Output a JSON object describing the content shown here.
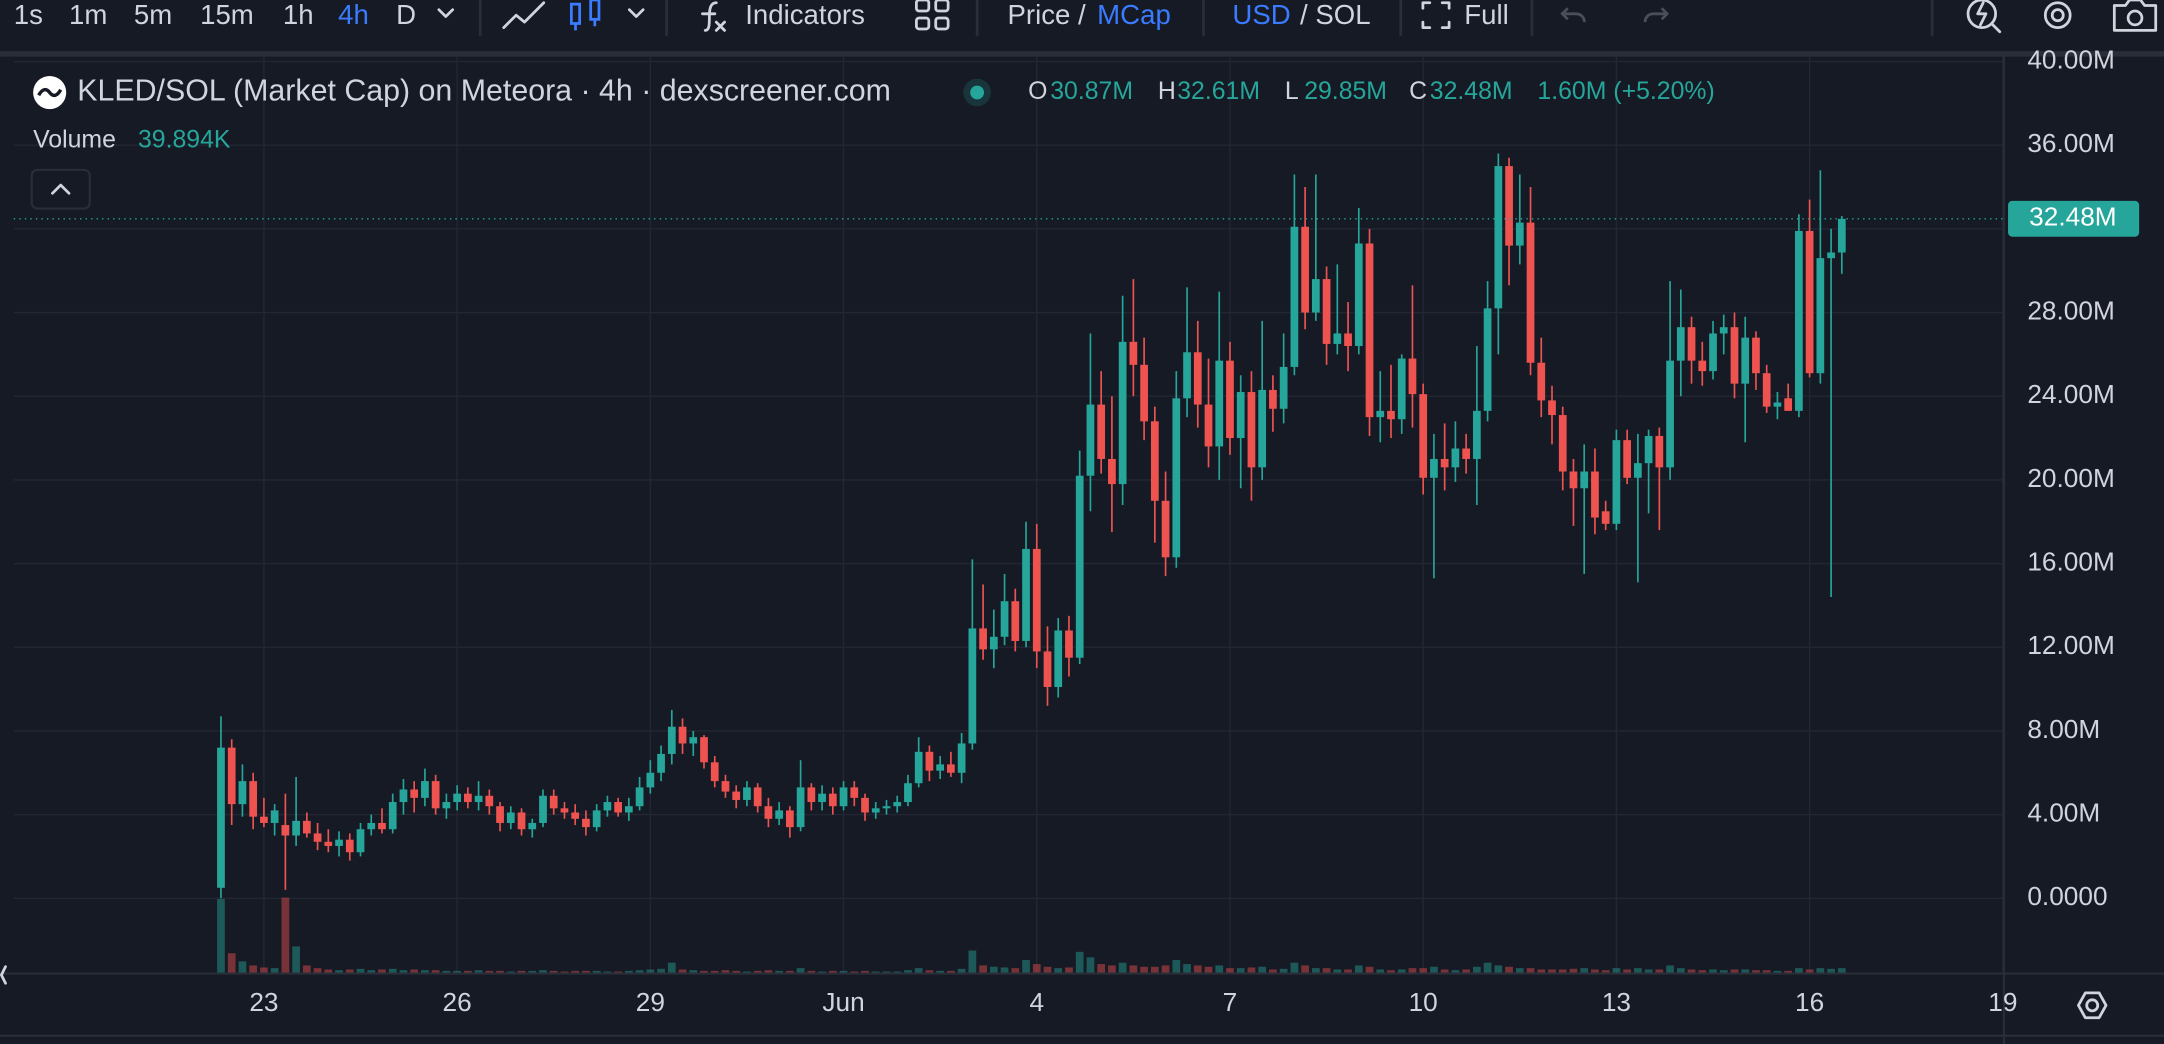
{
  "toolbar": {
    "intervals": [
      "1s",
      "1m",
      "5m",
      "15m",
      "1h",
      "4h",
      "D"
    ],
    "active_interval": "4h",
    "indicators": "Indicators",
    "price": "Price /",
    "mcap": "MCap",
    "usd": "USD",
    "sol": "/ SOL",
    "full": "Full"
  },
  "chart_data": {
    "type": "candlestick",
    "title": "KLED/SOL (Market Cap) on Meteora · 4h · dexscreener.com",
    "ohlc_legend": [
      {
        "key": "O",
        "text": "30.87M"
      },
      {
        "key": "H",
        "text": "32.61M"
      },
      {
        "key": "L",
        "text": "29.85M"
      },
      {
        "key": "C",
        "text": "32.48M"
      }
    ],
    "change": "1.60M (+5.20%)",
    "volume_label": "Volume",
    "volume_text": "39.894K",
    "up_color": "#26a69a",
    "down_color": "#ef5350",
    "grid": true,
    "last_price": {
      "value": 32.48,
      "label": "32.48M"
    },
    "ylim": [
      -3.6,
      40.3
    ],
    "yticks": [
      {
        "value": 0,
        "label": "0.0000"
      },
      {
        "value": 4,
        "label": "4.00M"
      },
      {
        "value": 8,
        "label": "8.00M"
      },
      {
        "value": 12,
        "label": "12.00M"
      },
      {
        "value": 16,
        "label": "16.00M"
      },
      {
        "value": 20,
        "label": "20.00M"
      },
      {
        "value": 24,
        "label": "24.00M"
      },
      {
        "value": 28,
        "label": "28.00M"
      },
      {
        "value": 32,
        "label": "32.00M"
      },
      {
        "value": 36,
        "label": "36.00M"
      },
      {
        "value": 40,
        "label": "40.00M"
      }
    ],
    "xlim": [
      -19.3,
      166.1
    ],
    "xticks": [
      {
        "value": 4,
        "label": "23"
      },
      {
        "value": 22,
        "label": "26"
      },
      {
        "value": 40,
        "label": "29"
      },
      {
        "value": 58,
        "label": "Jun"
      },
      {
        "value": 76,
        "label": "4"
      },
      {
        "value": 94,
        "label": "7"
      },
      {
        "value": 112,
        "label": "10"
      },
      {
        "value": 130,
        "label": "13"
      },
      {
        "value": 148,
        "label": "16"
      },
      {
        "value": 166,
        "label": "19"
      }
    ],
    "ohlc": [
      [
        0.5,
        8.7,
        0.0,
        7.2
      ],
      [
        7.2,
        7.6,
        3.5,
        4.5
      ],
      [
        4.5,
        6.4,
        3.9,
        5.6
      ],
      [
        5.6,
        6.0,
        3.3,
        3.9
      ],
      [
        3.9,
        4.8,
        3.4,
        3.6
      ],
      [
        3.6,
        4.5,
        3.0,
        4.2
      ],
      [
        3.5,
        5.0,
        0.4,
        3.0
      ],
      [
        3.0,
        5.8,
        2.5,
        3.7
      ],
      [
        3.7,
        4.1,
        2.9,
        3.1
      ],
      [
        3.1,
        3.6,
        2.3,
        2.7
      ],
      [
        2.7,
        3.3,
        2.2,
        2.5
      ],
      [
        2.5,
        3.2,
        2.0,
        2.8
      ],
      [
        2.8,
        3.1,
        1.8,
        2.2
      ],
      [
        2.2,
        3.6,
        2.0,
        3.3
      ],
      [
        3.3,
        4.0,
        3.0,
        3.6
      ],
      [
        3.6,
        4.3,
        3.1,
        3.3
      ],
      [
        3.3,
        5.0,
        3.1,
        4.6
      ],
      [
        4.6,
        5.7,
        4.0,
        5.2
      ],
      [
        5.2,
        5.6,
        4.1,
        4.8
      ],
      [
        4.8,
        6.2,
        4.4,
        5.6
      ],
      [
        5.6,
        5.9,
        4.0,
        4.3
      ],
      [
        4.3,
        5.0,
        3.8,
        4.6
      ],
      [
        4.6,
        5.4,
        4.2,
        5.0
      ],
      [
        5.0,
        5.3,
        4.3,
        4.6
      ],
      [
        4.6,
        5.6,
        4.2,
        4.9
      ],
      [
        4.9,
        5.2,
        4.0,
        4.4
      ],
      [
        4.4,
        4.6,
        3.2,
        3.6
      ],
      [
        3.6,
        4.4,
        3.3,
        4.1
      ],
      [
        4.1,
        4.3,
        3.0,
        3.3
      ],
      [
        3.3,
        3.8,
        2.9,
        3.6
      ],
      [
        3.6,
        5.2,
        3.4,
        4.9
      ],
      [
        4.9,
        5.2,
        4.0,
        4.3
      ],
      [
        4.3,
        4.6,
        3.8,
        4.1
      ],
      [
        4.1,
        4.5,
        3.5,
        3.8
      ],
      [
        3.8,
        4.2,
        3.0,
        3.4
      ],
      [
        3.4,
        4.5,
        3.2,
        4.2
      ],
      [
        4.2,
        4.9,
        3.9,
        4.6
      ],
      [
        4.6,
        4.8,
        3.9,
        4.1
      ],
      [
        4.1,
        4.8,
        3.7,
        4.4
      ],
      [
        4.4,
        5.8,
        4.2,
        5.3
      ],
      [
        5.3,
        6.6,
        5.0,
        6.0
      ],
      [
        6.0,
        7.3,
        5.6,
        6.9
      ],
      [
        6.9,
        9.0,
        6.4,
        8.2
      ],
      [
        8.2,
        8.6,
        6.9,
        7.4
      ],
      [
        7.4,
        8.0,
        6.8,
        7.7
      ],
      [
        7.7,
        7.8,
        6.2,
        6.5
      ],
      [
        6.5,
        6.8,
        5.3,
        5.6
      ],
      [
        5.6,
        5.9,
        4.8,
        5.1
      ],
      [
        5.1,
        5.4,
        4.3,
        4.7
      ],
      [
        4.7,
        5.6,
        4.4,
        5.3
      ],
      [
        5.3,
        5.5,
        4.1,
        4.4
      ],
      [
        4.4,
        4.8,
        3.4,
        3.8
      ],
      [
        3.8,
        4.6,
        3.5,
        4.2
      ],
      [
        4.2,
        4.4,
        2.9,
        3.4
      ],
      [
        3.4,
        6.6,
        3.2,
        5.3
      ],
      [
        5.3,
        5.5,
        4.2,
        4.6
      ],
      [
        4.6,
        5.4,
        4.2,
        5.0
      ],
      [
        5.0,
        5.3,
        4.0,
        4.4
      ],
      [
        4.4,
        5.6,
        4.2,
        5.3
      ],
      [
        5.3,
        5.6,
        4.4,
        4.8
      ],
      [
        4.8,
        5.0,
        3.7,
        4.1
      ],
      [
        4.1,
        4.6,
        3.8,
        4.3
      ],
      [
        4.3,
        4.7,
        4.0,
        4.4
      ],
      [
        4.4,
        4.9,
        4.1,
        4.6
      ],
      [
        4.6,
        5.9,
        4.4,
        5.5
      ],
      [
        5.5,
        7.7,
        5.3,
        7.0
      ],
      [
        7.0,
        7.3,
        5.6,
        6.1
      ],
      [
        6.1,
        6.8,
        5.7,
        6.4
      ],
      [
        6.4,
        7.0,
        5.8,
        6.0
      ],
      [
        6.0,
        7.9,
        5.5,
        7.4
      ],
      [
        7.4,
        16.2,
        7.1,
        12.9
      ],
      [
        12.9,
        15.0,
        11.4,
        11.9
      ],
      [
        11.9,
        13.8,
        11.0,
        12.5
      ],
      [
        12.5,
        15.5,
        12.1,
        14.2
      ],
      [
        14.2,
        14.8,
        11.8,
        12.3
      ],
      [
        12.3,
        18.0,
        12.0,
        16.7
      ],
      [
        16.7,
        17.9,
        11.0,
        11.8
      ],
      [
        11.8,
        13.0,
        9.2,
        10.1
      ],
      [
        10.1,
        13.4,
        9.6,
        12.8
      ],
      [
        12.8,
        13.5,
        10.6,
        11.5
      ],
      [
        11.5,
        21.4,
        11.2,
        20.2
      ],
      [
        20.2,
        27.0,
        18.5,
        23.6
      ],
      [
        23.6,
        25.2,
        20.3,
        21.0
      ],
      [
        21.0,
        24.0,
        17.5,
        19.8
      ],
      [
        19.8,
        28.8,
        18.8,
        26.6
      ],
      [
        26.6,
        29.6,
        24.0,
        25.5
      ],
      [
        25.5,
        26.8,
        21.9,
        22.8
      ],
      [
        22.8,
        23.5,
        17.0,
        19.0
      ],
      [
        19.0,
        20.4,
        15.4,
        16.3
      ],
      [
        16.3,
        25.2,
        15.8,
        23.9
      ],
      [
        23.9,
        29.2,
        23.0,
        26.1
      ],
      [
        26.1,
        27.6,
        22.5,
        23.6
      ],
      [
        23.6,
        25.8,
        20.6,
        21.6
      ],
      [
        21.6,
        29.0,
        20.0,
        25.7
      ],
      [
        25.7,
        26.6,
        21.2,
        22.0
      ],
      [
        22.0,
        25.0,
        19.6,
        24.2
      ],
      [
        24.2,
        25.2,
        19.0,
        20.6
      ],
      [
        20.6,
        27.6,
        20.0,
        24.3
      ],
      [
        24.3,
        25.0,
        22.3,
        23.4
      ],
      [
        23.4,
        27.0,
        22.7,
        25.4
      ],
      [
        25.4,
        34.6,
        25.0,
        32.1
      ],
      [
        32.1,
        34.0,
        27.2,
        28.0
      ],
      [
        28.0,
        34.6,
        27.6,
        29.6
      ],
      [
        29.6,
        30.2,
        25.5,
        26.5
      ],
      [
        26.5,
        30.3,
        26.0,
        27.0
      ],
      [
        27.0,
        28.5,
        25.2,
        26.4
      ],
      [
        26.4,
        33.0,
        26.0,
        31.3
      ],
      [
        31.3,
        32.0,
        22.1,
        23.0
      ],
      [
        23.0,
        25.2,
        21.8,
        23.3
      ],
      [
        23.3,
        25.5,
        22.0,
        22.9
      ],
      [
        22.9,
        26.0,
        22.2,
        25.8
      ],
      [
        25.8,
        29.3,
        22.5,
        24.1
      ],
      [
        24.1,
        24.6,
        19.3,
        20.1
      ],
      [
        20.1,
        22.2,
        15.3,
        21.0
      ],
      [
        21.0,
        22.7,
        19.5,
        20.6
      ],
      [
        20.6,
        22.8,
        19.9,
        21.5
      ],
      [
        21.5,
        22.2,
        20.3,
        21.0
      ],
      [
        21.0,
        26.4,
        18.8,
        23.3
      ],
      [
        23.3,
        29.5,
        22.8,
        28.2
      ],
      [
        28.2,
        35.6,
        26.0,
        35.0
      ],
      [
        35.0,
        35.4,
        29.3,
        31.2
      ],
      [
        31.2,
        34.6,
        30.3,
        32.3
      ],
      [
        32.3,
        34.0,
        25.0,
        25.6
      ],
      [
        25.6,
        26.8,
        23.0,
        23.8
      ],
      [
        23.8,
        24.5,
        21.7,
        23.1
      ],
      [
        23.1,
        23.5,
        19.5,
        20.4
      ],
      [
        20.4,
        21.0,
        17.8,
        19.6
      ],
      [
        19.6,
        21.7,
        15.5,
        20.4
      ],
      [
        20.4,
        21.5,
        17.4,
        18.2
      ],
      [
        18.5,
        19.0,
        17.6,
        17.9
      ],
      [
        17.9,
        22.4,
        17.6,
        21.9
      ],
      [
        21.9,
        22.4,
        19.8,
        20.1
      ],
      [
        20.1,
        22.2,
        15.1,
        20.8
      ],
      [
        20.8,
        22.4,
        18.4,
        22.1
      ],
      [
        22.1,
        22.5,
        17.6,
        20.6
      ],
      [
        20.6,
        29.5,
        20.0,
        25.7
      ],
      [
        25.7,
        29.1,
        24.0,
        27.3
      ],
      [
        27.3,
        27.8,
        24.6,
        25.7
      ],
      [
        25.7,
        26.6,
        24.5,
        25.2
      ],
      [
        25.2,
        27.6,
        24.8,
        27.0
      ],
      [
        27.0,
        27.9,
        26.0,
        27.3
      ],
      [
        27.3,
        28.0,
        23.9,
        24.6
      ],
      [
        24.6,
        27.8,
        21.8,
        26.8
      ],
      [
        26.8,
        27.1,
        24.3,
        25.1
      ],
      [
        25.1,
        25.5,
        23.2,
        23.5
      ],
      [
        23.5,
        24.2,
        22.9,
        23.7
      ],
      [
        23.9,
        24.6,
        23.3,
        23.3
      ],
      [
        23.3,
        32.7,
        23.0,
        31.9
      ],
      [
        31.9,
        33.4,
        24.9,
        25.1
      ],
      [
        25.1,
        34.8,
        24.6,
        30.6
      ],
      [
        30.6,
        32.0,
        14.4,
        30.87
      ],
      [
        30.87,
        32.61,
        29.85,
        32.48
      ]
    ],
    "volume": [
      550,
      150,
      90,
      60,
      45,
      40,
      560,
      200,
      60,
      40,
      30,
      25,
      30,
      35,
      25,
      30,
      35,
      25,
      30,
      25,
      25,
      20,
      20,
      20,
      25,
      20,
      20,
      15,
      20,
      20,
      25,
      20,
      15,
      20,
      20,
      20,
      15,
      15,
      20,
      25,
      30,
      35,
      80,
      30,
      25,
      20,
      20,
      25,
      20,
      15,
      20,
      25,
      20,
      20,
      40,
      20,
      15,
      20,
      20,
      15,
      20,
      15,
      15,
      15,
      25,
      40,
      25,
      20,
      20,
      35,
      170,
      60,
      50,
      45,
      40,
      100,
      70,
      50,
      40,
      45,
      160,
      120,
      70,
      60,
      80,
      60,
      50,
      50,
      60,
      100,
      70,
      60,
      50,
      60,
      40,
      40,
      45,
      50,
      30,
      35,
      80,
      60,
      40,
      40,
      30,
      30,
      60,
      50,
      30,
      25,
      30,
      40,
      40,
      50,
      30,
      25,
      30,
      50,
      80,
      60,
      50,
      40,
      40,
      30,
      30,
      30,
      35,
      40,
      30,
      25,
      40,
      30,
      40,
      30,
      30,
      60,
      40,
      30,
      25,
      30,
      25,
      30,
      30,
      25,
      25,
      20,
      20,
      40,
      30,
      40,
      35,
      39.894
    ]
  }
}
